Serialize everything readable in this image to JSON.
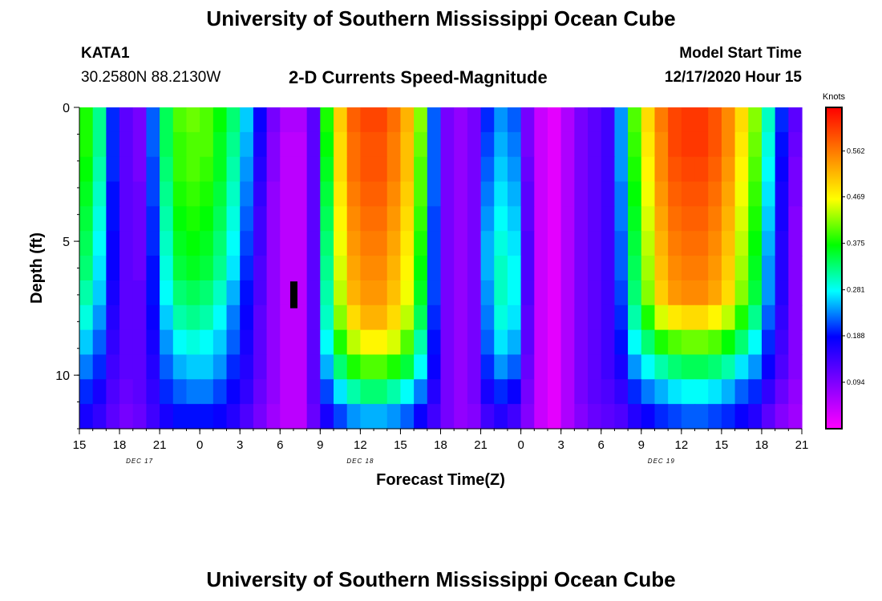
{
  "page": {
    "title": "University of Southern Mississippi Ocean Cube",
    "footer_title": "University of Southern Mississippi Ocean Cube",
    "station_id": "KATA1",
    "station_coords": "30.2580N 88.2130W",
    "subtitle": "2-D Currents Speed-Magnitude",
    "model_start_label": "Model Start Time",
    "model_start_value": "12/17/2020 Hour 15"
  },
  "chart_data": {
    "type": "heatmap",
    "title": "2-D Currents Speed-Magnitude",
    "xlabel": "Forecast Time(Z)",
    "ylabel": "Depth (ft)",
    "x_start_hour": 0,
    "x_end_hour": 54,
    "x_ticks": [
      {
        "hour": 0,
        "label": "15"
      },
      {
        "hour": 3,
        "label": "18"
      },
      {
        "hour": 6,
        "label": "21"
      },
      {
        "hour": 9,
        "label": "0"
      },
      {
        "hour": 12,
        "label": "3"
      },
      {
        "hour": 15,
        "label": "6"
      },
      {
        "hour": 18,
        "label": "9"
      },
      {
        "hour": 21,
        "label": "12"
      },
      {
        "hour": 24,
        "label": "15"
      },
      {
        "hour": 27,
        "label": "18"
      },
      {
        "hour": 30,
        "label": "21"
      },
      {
        "hour": 33,
        "label": "0"
      },
      {
        "hour": 36,
        "label": "3"
      },
      {
        "hour": 39,
        "label": "6"
      },
      {
        "hour": 42,
        "label": "9"
      },
      {
        "hour": 45,
        "label": "12"
      },
      {
        "hour": 48,
        "label": "15"
      },
      {
        "hour": 51,
        "label": "18"
      },
      {
        "hour": 54,
        "label": "21"
      }
    ],
    "date_labels": [
      {
        "hour": 4.5,
        "label": "DEC 17"
      },
      {
        "hour": 21,
        "label": "DEC 18"
      },
      {
        "hour": 43.5,
        "label": "DEC 19"
      }
    ],
    "ylim": [
      0,
      12
    ],
    "y_ticks": [
      0,
      5,
      10
    ],
    "colorbar": {
      "unit": "Knots",
      "vmin": 0.0,
      "vmax": 0.65,
      "tick_labels": [
        "0.094",
        "0.188",
        "0.281",
        "0.375",
        "0.469",
        "0.562"
      ],
      "stops": [
        "#ff00ff",
        "#8000ff",
        "#0000ff",
        "#00ffff",
        "#00ff00",
        "#ffff00",
        "#ff8000",
        "#ff0000"
      ]
    },
    "missing_cells": [
      {
        "hour": 16,
        "depth_from": 6.5,
        "depth_to": 7.5
      }
    ],
    "depths_ft": [
      0,
      1,
      2,
      3,
      4,
      5,
      6,
      7,
      8,
      9,
      10,
      11,
      12
    ],
    "time_hours": [
      0,
      1,
      2,
      3,
      4,
      5,
      6,
      7,
      8,
      9,
      10,
      11,
      12,
      13,
      14,
      15,
      16,
      17,
      18,
      19,
      20,
      21,
      22,
      23,
      24,
      25,
      26,
      27,
      28,
      29,
      30,
      31,
      32,
      33,
      34,
      35,
      36,
      37,
      38,
      39,
      40,
      41,
      42,
      43,
      44,
      45,
      46,
      47,
      48,
      49,
      50,
      51,
      52,
      53
    ],
    "speed_knots": [
      [
        0.38,
        0.32,
        0.2,
        0.12,
        0.1,
        0.22,
        0.34,
        0.4,
        0.41,
        0.4,
        0.37,
        0.33,
        0.26,
        0.18,
        0.1,
        0.06,
        0.06,
        0.12,
        0.38,
        0.5,
        0.58,
        0.6,
        0.6,
        0.57,
        0.52,
        0.42,
        0.22,
        0.1,
        0.08,
        0.1,
        0.2,
        0.24,
        0.22,
        0.1,
        0.04,
        0.02,
        0.06,
        0.1,
        0.12,
        0.14,
        0.24,
        0.4,
        0.49,
        0.56,
        0.6,
        0.61,
        0.61,
        0.59,
        0.55,
        0.49,
        0.42,
        0.3,
        0.2,
        0.12
      ],
      [
        0.38,
        0.32,
        0.2,
        0.12,
        0.1,
        0.22,
        0.34,
        0.39,
        0.4,
        0.4,
        0.36,
        0.32,
        0.25,
        0.17,
        0.09,
        0.05,
        0.05,
        0.12,
        0.37,
        0.49,
        0.57,
        0.59,
        0.59,
        0.56,
        0.51,
        0.41,
        0.22,
        0.1,
        0.08,
        0.1,
        0.21,
        0.25,
        0.23,
        0.1,
        0.04,
        0.02,
        0.06,
        0.1,
        0.12,
        0.14,
        0.24,
        0.39,
        0.48,
        0.55,
        0.6,
        0.61,
        0.61,
        0.59,
        0.55,
        0.48,
        0.41,
        0.29,
        0.19,
        0.11
      ],
      [
        0.37,
        0.31,
        0.2,
        0.12,
        0.1,
        0.21,
        0.33,
        0.39,
        0.4,
        0.39,
        0.36,
        0.31,
        0.24,
        0.16,
        0.09,
        0.05,
        0.05,
        0.12,
        0.36,
        0.49,
        0.57,
        0.59,
        0.59,
        0.56,
        0.51,
        0.4,
        0.22,
        0.1,
        0.08,
        0.1,
        0.22,
        0.26,
        0.24,
        0.11,
        0.04,
        0.02,
        0.06,
        0.1,
        0.12,
        0.14,
        0.24,
        0.38,
        0.47,
        0.55,
        0.59,
        0.6,
        0.6,
        0.58,
        0.54,
        0.47,
        0.4,
        0.28,
        0.18,
        0.1
      ],
      [
        0.36,
        0.3,
        0.19,
        0.12,
        0.11,
        0.21,
        0.32,
        0.38,
        0.39,
        0.38,
        0.35,
        0.3,
        0.23,
        0.15,
        0.08,
        0.05,
        0.05,
        0.12,
        0.35,
        0.48,
        0.56,
        0.58,
        0.58,
        0.55,
        0.5,
        0.4,
        0.22,
        0.1,
        0.08,
        0.1,
        0.23,
        0.27,
        0.25,
        0.12,
        0.04,
        0.02,
        0.06,
        0.1,
        0.12,
        0.14,
        0.23,
        0.37,
        0.46,
        0.54,
        0.58,
        0.59,
        0.59,
        0.57,
        0.53,
        0.46,
        0.39,
        0.27,
        0.17,
        0.1
      ],
      [
        0.35,
        0.29,
        0.19,
        0.12,
        0.11,
        0.2,
        0.31,
        0.37,
        0.38,
        0.37,
        0.34,
        0.29,
        0.22,
        0.14,
        0.08,
        0.05,
        0.05,
        0.12,
        0.34,
        0.47,
        0.55,
        0.57,
        0.57,
        0.54,
        0.49,
        0.39,
        0.21,
        0.1,
        0.08,
        0.1,
        0.24,
        0.28,
        0.26,
        0.12,
        0.04,
        0.02,
        0.06,
        0.1,
        0.12,
        0.14,
        0.23,
        0.36,
        0.45,
        0.53,
        0.57,
        0.58,
        0.58,
        0.56,
        0.52,
        0.45,
        0.38,
        0.26,
        0.17,
        0.09
      ],
      [
        0.34,
        0.28,
        0.18,
        0.12,
        0.11,
        0.2,
        0.3,
        0.36,
        0.37,
        0.36,
        0.33,
        0.28,
        0.21,
        0.14,
        0.08,
        0.05,
        0.05,
        0.12,
        0.33,
        0.46,
        0.54,
        0.56,
        0.56,
        0.53,
        0.48,
        0.38,
        0.21,
        0.1,
        0.08,
        0.1,
        0.25,
        0.29,
        0.27,
        0.13,
        0.04,
        0.02,
        0.06,
        0.1,
        0.12,
        0.14,
        0.22,
        0.35,
        0.44,
        0.52,
        0.56,
        0.57,
        0.57,
        0.55,
        0.51,
        0.44,
        0.37,
        0.25,
        0.16,
        0.09
      ],
      [
        0.33,
        0.27,
        0.18,
        0.12,
        0.11,
        0.19,
        0.29,
        0.35,
        0.36,
        0.35,
        0.32,
        0.27,
        0.2,
        0.13,
        0.08,
        0.05,
        0.05,
        0.12,
        0.32,
        0.45,
        0.53,
        0.55,
        0.55,
        0.52,
        0.47,
        0.37,
        0.21,
        0.1,
        0.08,
        0.1,
        0.25,
        0.3,
        0.28,
        0.13,
        0.04,
        0.02,
        0.06,
        0.1,
        0.12,
        0.14,
        0.22,
        0.34,
        0.43,
        0.51,
        0.55,
        0.56,
        0.56,
        0.54,
        0.5,
        0.43,
        0.36,
        0.24,
        0.16,
        0.09
      ],
      [
        0.31,
        0.26,
        0.17,
        0.12,
        0.12,
        0.19,
        0.28,
        0.33,
        0.34,
        0.33,
        0.3,
        0.25,
        0.19,
        0.13,
        0.08,
        0.05,
        0.05,
        0.12,
        0.31,
        0.44,
        0.52,
        0.54,
        0.54,
        0.51,
        0.46,
        0.36,
        0.21,
        0.1,
        0.08,
        0.1,
        0.24,
        0.3,
        0.28,
        0.13,
        0.04,
        0.02,
        0.06,
        0.1,
        0.12,
        0.14,
        0.21,
        0.33,
        0.42,
        0.5,
        0.54,
        0.55,
        0.55,
        0.53,
        0.49,
        0.42,
        0.35,
        0.24,
        0.16,
        0.09
      ],
      [
        0.29,
        0.24,
        0.16,
        0.12,
        0.12,
        0.18,
        0.26,
        0.31,
        0.32,
        0.31,
        0.28,
        0.23,
        0.18,
        0.12,
        0.08,
        0.05,
        0.05,
        0.12,
        0.3,
        0.42,
        0.49,
        0.52,
        0.52,
        0.49,
        0.44,
        0.34,
        0.2,
        0.1,
        0.08,
        0.1,
        0.23,
        0.29,
        0.27,
        0.12,
        0.04,
        0.02,
        0.06,
        0.1,
        0.12,
        0.14,
        0.2,
        0.31,
        0.38,
        0.45,
        0.48,
        0.49,
        0.49,
        0.47,
        0.44,
        0.38,
        0.32,
        0.22,
        0.15,
        0.09
      ],
      [
        0.26,
        0.22,
        0.15,
        0.12,
        0.12,
        0.17,
        0.24,
        0.28,
        0.29,
        0.28,
        0.26,
        0.22,
        0.17,
        0.12,
        0.08,
        0.05,
        0.05,
        0.12,
        0.28,
        0.38,
        0.44,
        0.47,
        0.47,
        0.45,
        0.4,
        0.31,
        0.19,
        0.1,
        0.08,
        0.1,
        0.22,
        0.27,
        0.25,
        0.12,
        0.04,
        0.02,
        0.06,
        0.1,
        0.12,
        0.14,
        0.19,
        0.28,
        0.33,
        0.38,
        0.4,
        0.41,
        0.41,
        0.4,
        0.37,
        0.33,
        0.28,
        0.2,
        0.14,
        0.09
      ],
      [
        0.23,
        0.2,
        0.14,
        0.12,
        0.12,
        0.16,
        0.22,
        0.25,
        0.26,
        0.26,
        0.24,
        0.2,
        0.16,
        0.12,
        0.08,
        0.05,
        0.05,
        0.12,
        0.25,
        0.33,
        0.38,
        0.4,
        0.4,
        0.38,
        0.35,
        0.28,
        0.18,
        0.1,
        0.08,
        0.1,
        0.2,
        0.24,
        0.22,
        0.11,
        0.04,
        0.02,
        0.06,
        0.1,
        0.12,
        0.14,
        0.17,
        0.24,
        0.28,
        0.31,
        0.33,
        0.34,
        0.34,
        0.33,
        0.31,
        0.27,
        0.24,
        0.18,
        0.13,
        0.09
      ],
      [
        0.2,
        0.17,
        0.13,
        0.11,
        0.12,
        0.15,
        0.2,
        0.22,
        0.23,
        0.23,
        0.21,
        0.18,
        0.15,
        0.11,
        0.08,
        0.05,
        0.05,
        0.12,
        0.21,
        0.27,
        0.31,
        0.33,
        0.33,
        0.31,
        0.28,
        0.23,
        0.16,
        0.1,
        0.08,
        0.1,
        0.17,
        0.2,
        0.18,
        0.1,
        0.04,
        0.02,
        0.06,
        0.1,
        0.12,
        0.13,
        0.15,
        0.2,
        0.23,
        0.25,
        0.27,
        0.28,
        0.28,
        0.27,
        0.25,
        0.22,
        0.2,
        0.15,
        0.11,
        0.08
      ],
      [
        0.17,
        0.15,
        0.12,
        0.1,
        0.11,
        0.14,
        0.17,
        0.19,
        0.19,
        0.19,
        0.18,
        0.16,
        0.13,
        0.1,
        0.07,
        0.05,
        0.05,
        0.11,
        0.17,
        0.21,
        0.24,
        0.25,
        0.25,
        0.24,
        0.22,
        0.18,
        0.14,
        0.1,
        0.08,
        0.09,
        0.14,
        0.16,
        0.14,
        0.09,
        0.04,
        0.02,
        0.06,
        0.09,
        0.11,
        0.12,
        0.13,
        0.16,
        0.18,
        0.2,
        0.21,
        0.22,
        0.22,
        0.21,
        0.2,
        0.18,
        0.16,
        0.12,
        0.09,
        0.07
      ]
    ]
  }
}
